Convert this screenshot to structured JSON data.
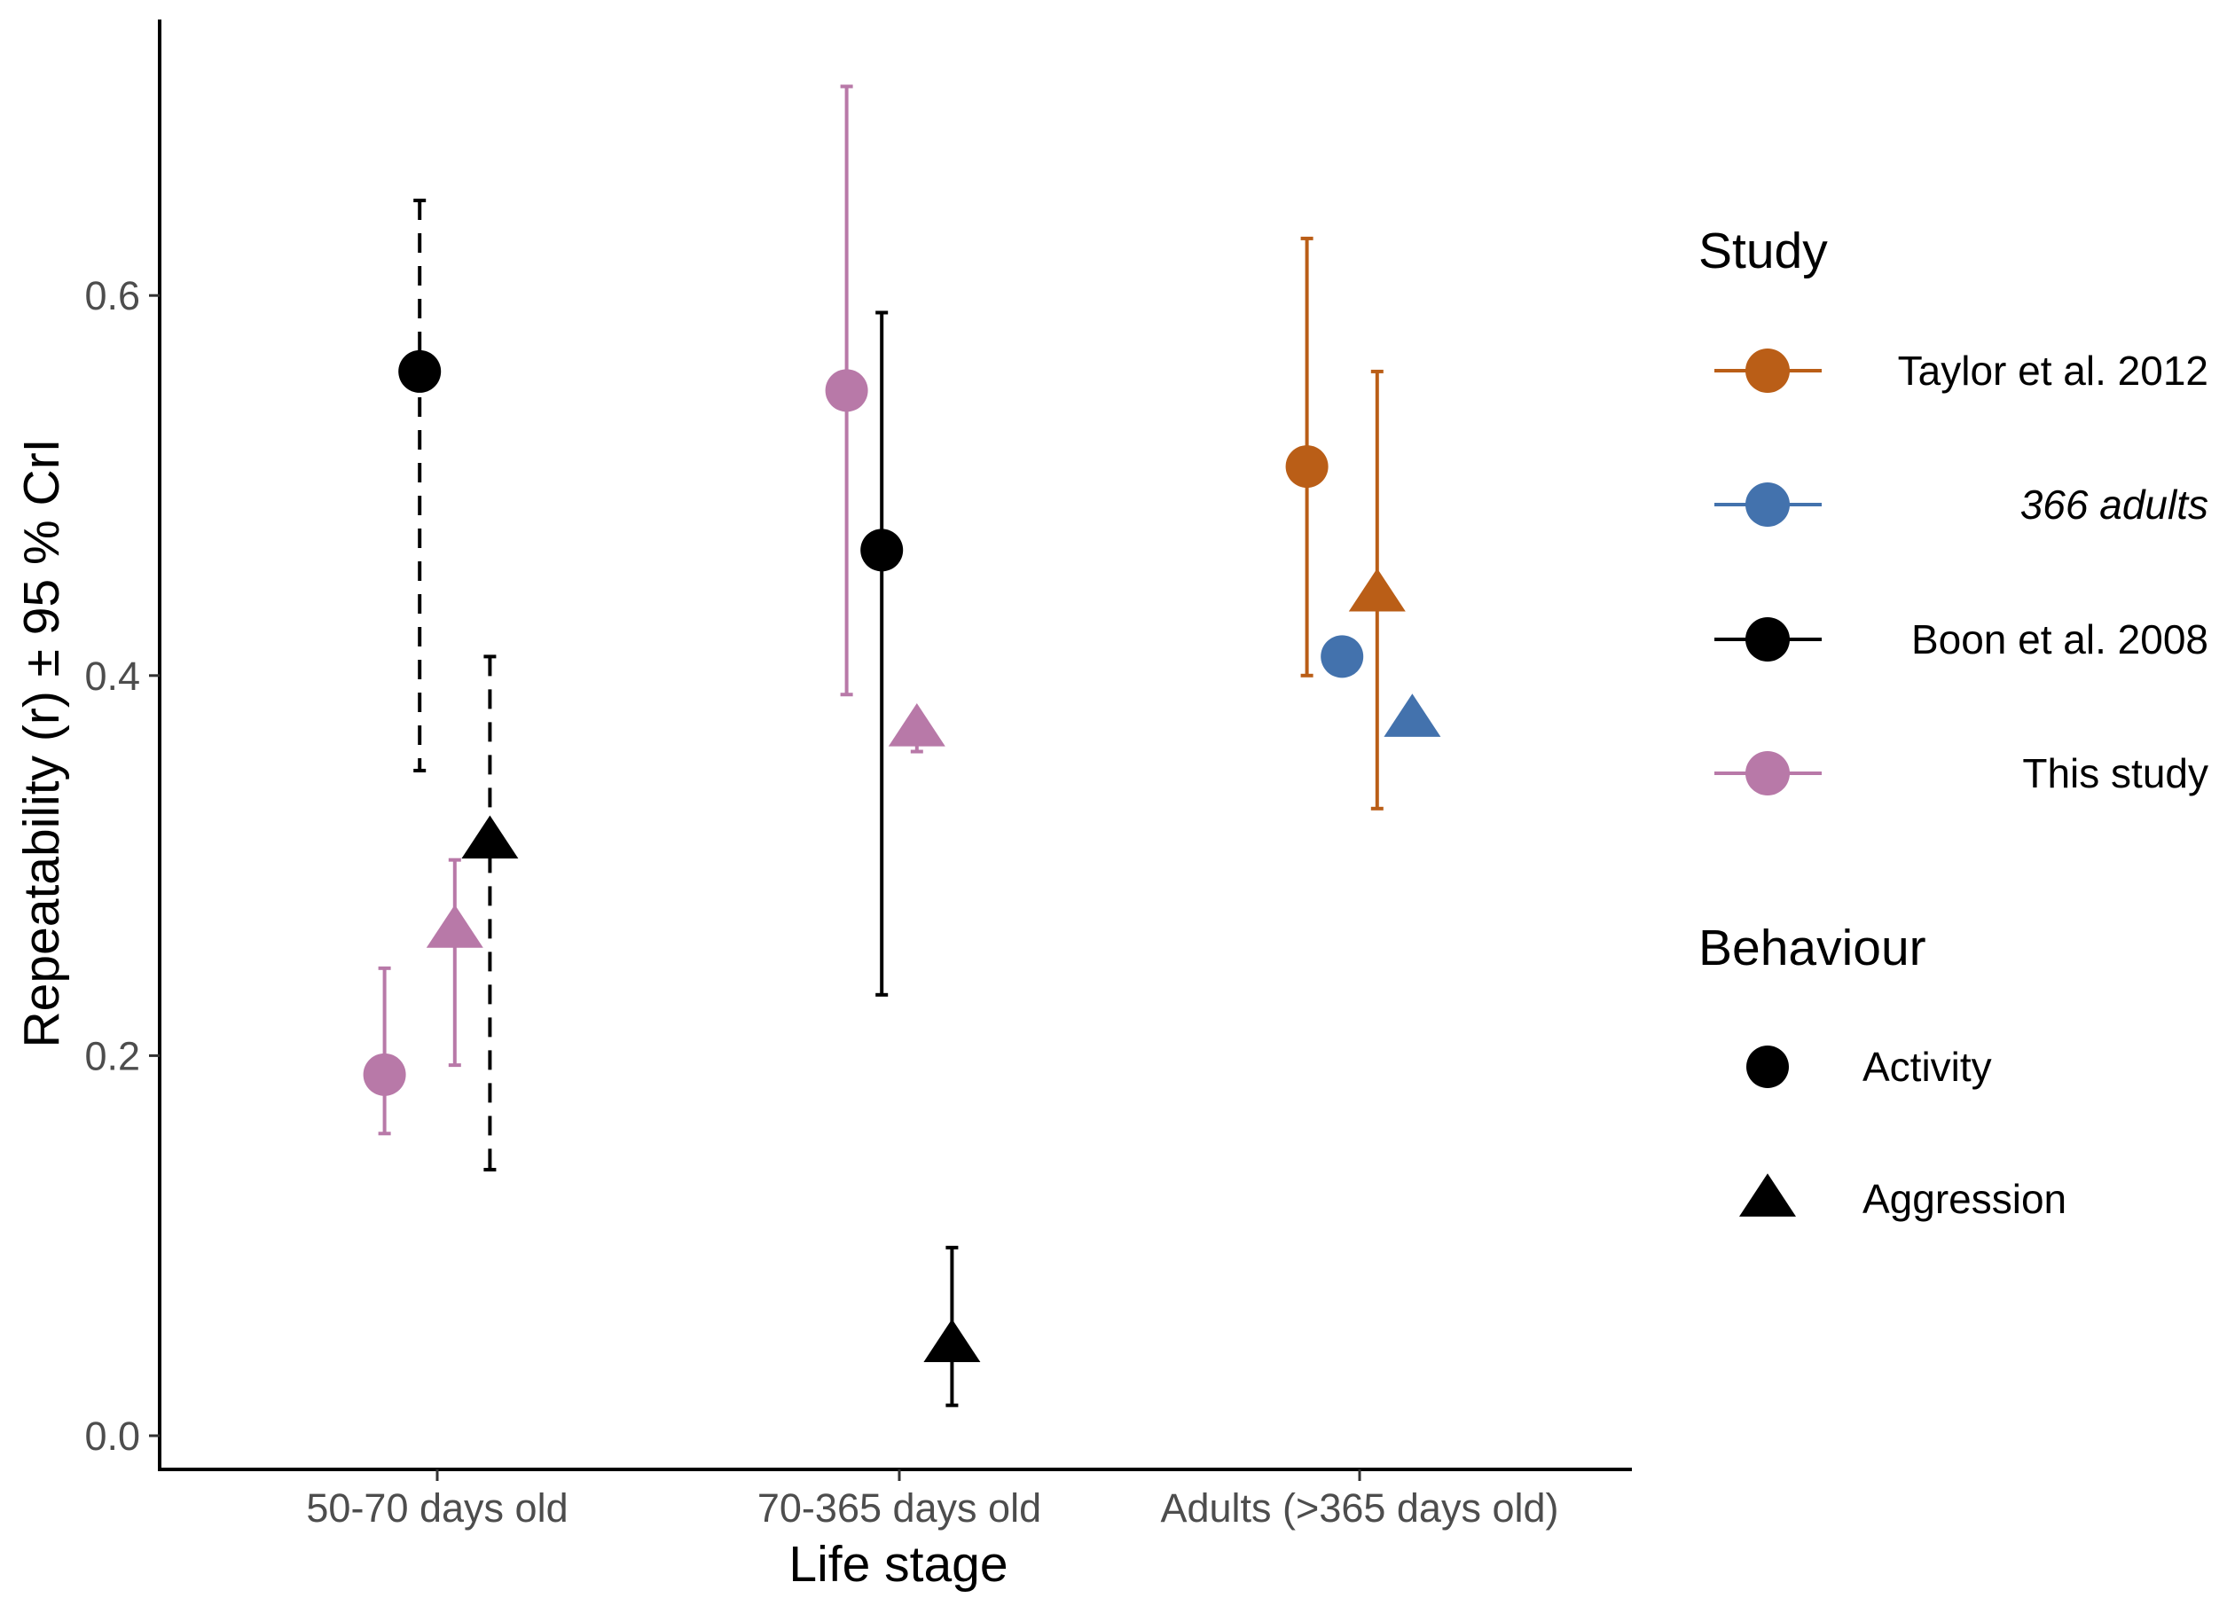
{
  "chart_data": {
    "type": "scatter",
    "title": "",
    "xlabel": "Life stage",
    "ylabel": "Repeatability (r) ± 95 % CrI",
    "categories": [
      "50-70 days old",
      "70-365 days old",
      "Adults (>365 days old)"
    ],
    "yticks": [
      0.0,
      0.2,
      0.4,
      0.6
    ],
    "ytick_labels": [
      "0.0",
      "0.2",
      "0.4",
      "0.6"
    ],
    "ylim": [
      -0.02,
      0.745
    ],
    "grid": false,
    "legend_placement": "right",
    "studies": [
      {
        "name": "Taylor et al. 2012",
        "color": "#BA5E17",
        "italic": false
      },
      {
        "name": "366 adults",
        "color": "#4372AD",
        "italic": true
      },
      {
        "name": "Boon et al. 2008",
        "color": "#000000",
        "italic": false
      },
      {
        "name": "This study",
        "color": "#B879A8",
        "italic": false
      }
    ],
    "behaviours": [
      {
        "name": "Activity",
        "shape": "circle"
      },
      {
        "name": "Aggression",
        "shape": "triangle"
      }
    ],
    "points": [
      {
        "category": "50-70 days old",
        "study": "This study",
        "behaviour": "Activity",
        "dodge": -1.5,
        "r": 0.19,
        "lower": 0.159,
        "upper": 0.246,
        "linetype": "solid"
      },
      {
        "category": "50-70 days old",
        "study": "Boon et al. 2008",
        "behaviour": "Activity",
        "dodge": -0.5,
        "r": 0.56,
        "lower": 0.35,
        "upper": 0.65,
        "linetype": "dashed"
      },
      {
        "category": "50-70 days old",
        "study": "This study",
        "behaviour": "Aggression",
        "dodge": 0.5,
        "r": 0.266,
        "lower": 0.195,
        "upper": 0.303,
        "linetype": "solid"
      },
      {
        "category": "50-70 days old",
        "study": "Boon et al. 2008",
        "behaviour": "Aggression",
        "dodge": 1.5,
        "r": 0.313,
        "lower": 0.14,
        "upper": 0.41,
        "linetype": "dashed"
      },
      {
        "category": "70-365 days old",
        "study": "This study",
        "behaviour": "Activity",
        "dodge": -1.5,
        "r": 0.55,
        "lower": 0.39,
        "upper": 0.71,
        "linetype": "solid"
      },
      {
        "category": "70-365 days old",
        "study": "Boon et al. 2008",
        "behaviour": "Activity",
        "dodge": -0.5,
        "r": 0.466,
        "lower": 0.232,
        "upper": 0.591,
        "linetype": "solid"
      },
      {
        "category": "70-365 days old",
        "study": "This study",
        "behaviour": "Aggression",
        "dodge": 0.5,
        "r": 0.372,
        "lower": 0.36,
        "upper": 0.37,
        "linetype": "solid"
      },
      {
        "category": "70-365 days old",
        "study": "Boon et al. 2008",
        "behaviour": "Aggression",
        "dodge": 1.5,
        "r": 0.048,
        "lower": 0.016,
        "upper": 0.099,
        "linetype": "solid"
      },
      {
        "category": "Adults (>365 days old)",
        "study": "Taylor et al. 2012",
        "behaviour": "Activity",
        "dodge": -1.5,
        "r": 0.51,
        "lower": 0.4,
        "upper": 0.63,
        "linetype": "solid"
      },
      {
        "category": "Adults (>365 days old)",
        "study": "366 adults",
        "behaviour": "Activity",
        "dodge": -0.5,
        "r": 0.41,
        "lower": null,
        "upper": null,
        "linetype": "solid"
      },
      {
        "category": "Adults (>365 days old)",
        "study": "Taylor et al. 2012",
        "behaviour": "Aggression",
        "dodge": 0.5,
        "r": 0.443,
        "lower": 0.33,
        "upper": 0.56,
        "linetype": "solid"
      },
      {
        "category": "Adults (>365 days old)",
        "study": "366 adults",
        "behaviour": "Aggression",
        "dodge": 1.5,
        "r": 0.377,
        "lower": null,
        "upper": null,
        "linetype": "solid"
      }
    ]
  },
  "legend": {
    "study_title": "Study",
    "behaviour_title": "Behaviour"
  }
}
